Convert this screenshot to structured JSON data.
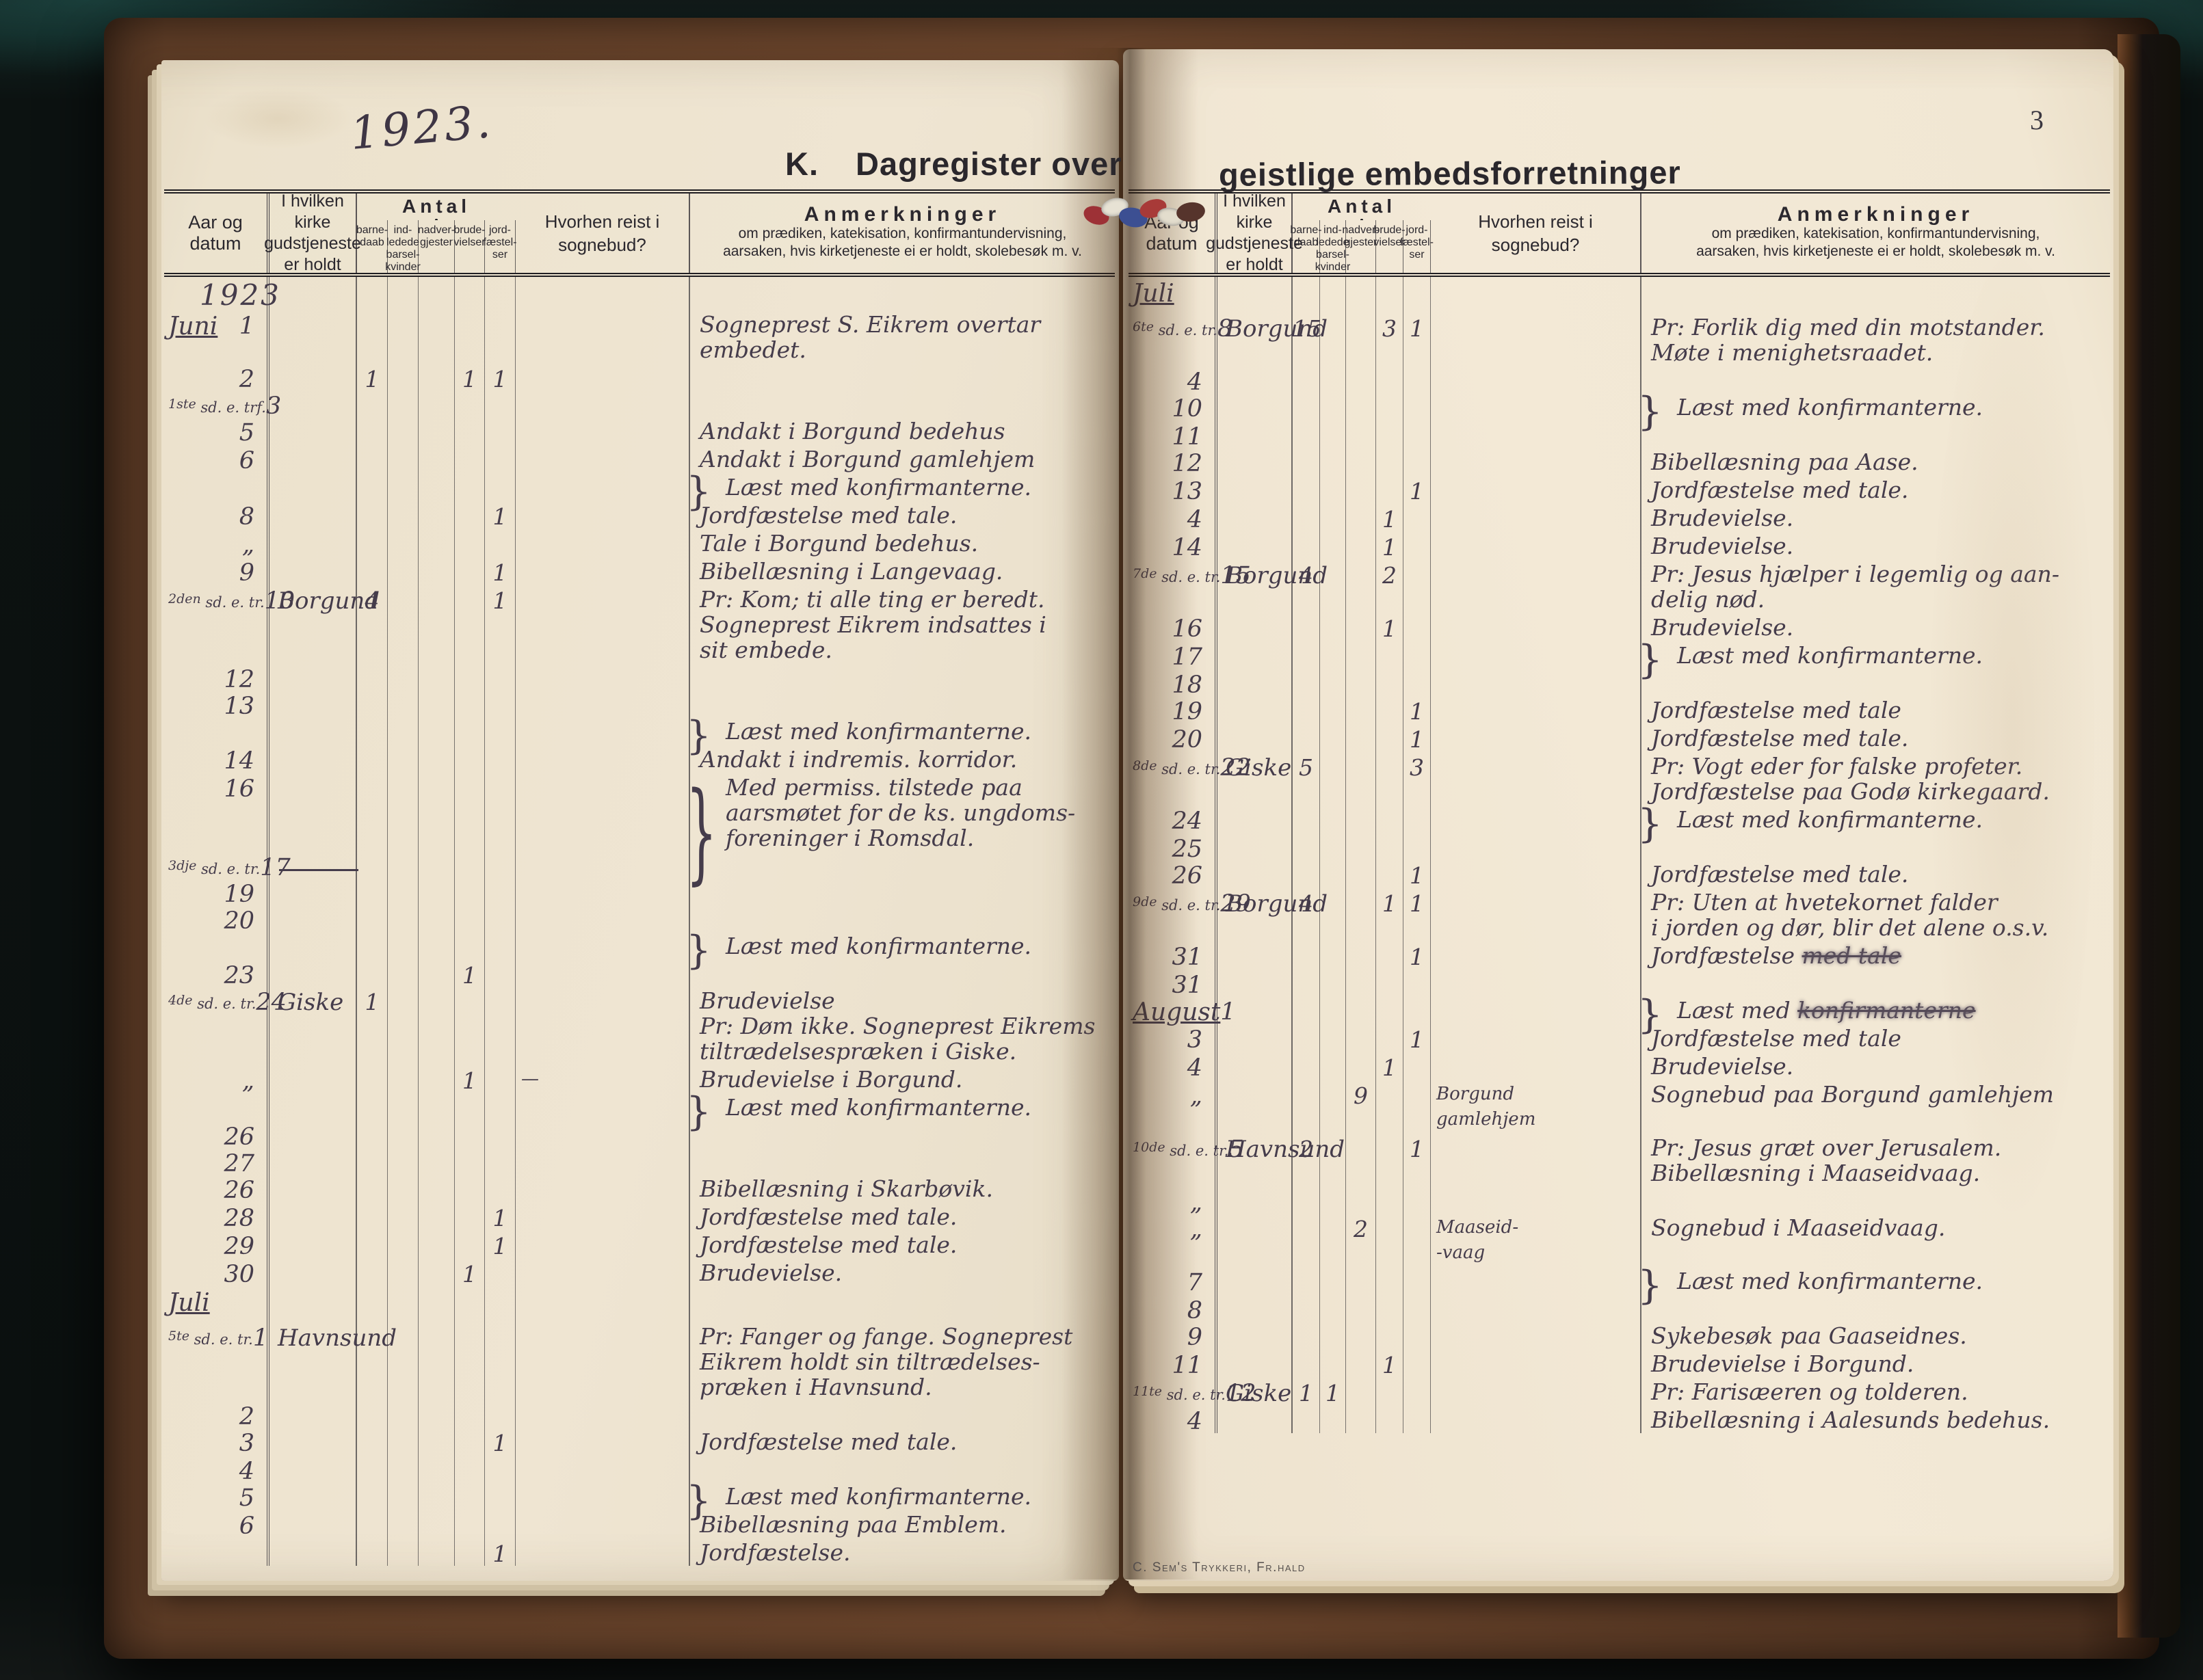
{
  "document": {
    "title_k": "K.",
    "title_left": "Dagregister over",
    "title_right": "geistlige embedsforretninger",
    "page_number": "3",
    "year_script": "1923.",
    "printer_mark": "C. Sem's Trykkeri, Fr.hald"
  },
  "table_header": {
    "datum": "Aar og datum",
    "church": [
      "I hvilken kirke",
      "gudstjeneste",
      "er holdt"
    ],
    "antal_title": "Antal",
    "antal_cols": [
      [
        "barne-",
        "daab"
      ],
      [
        "ind-",
        "ledede",
        "barsel-",
        "kvinder"
      ],
      [
        "nadver-",
        "gjester"
      ],
      [
        "brude-",
        "vielser"
      ],
      [
        "jord-",
        "fæstel-",
        "ser"
      ]
    ],
    "hvorhen": [
      "Hvorhen reist i",
      "sognebud?"
    ],
    "anm_title": "Anmerkninger",
    "anm_sub": [
      "om prædiken, katekisation, konfirmantundervisning,",
      "aarsaken, hvis kirketjeneste ei er holdt, skolebesøk m. v."
    ]
  },
  "pages": [
    {
      "rows": [
        {
          "year": "1923"
        },
        {
          "month": "Juni",
          "day": "1",
          "anm": [
            "Sogneprest S. Eikrem overtar",
            "embedet."
          ]
        },
        {
          "day": "2",
          "n": {
            "bd": "1",
            "bv": "1",
            "jf": "1"
          }
        },
        {
          "pre": "1ste",
          "pre2": "sd. e. trf.",
          "day": "3"
        },
        {
          "day": "5",
          "anm": [
            "Andakt i Borgund bedehus"
          ]
        },
        {
          "day": "6",
          "anm": [
            "Andakt i Borgund gamlehjem"
          ]
        },
        {
          "brace": true,
          "anm": [
            "Læst med konfirmanterne."
          ]
        },
        {
          "day": "8",
          "n": {
            "jf": "1"
          },
          "anm": [
            "Jordfæstelse med tale."
          ]
        },
        {
          "day": "„",
          "anm": [
            "Tale i Borgund bedehus."
          ]
        },
        {
          "day": "9",
          "n": {
            "jf": "1"
          },
          "anm": [
            "Bibellæsning i Langevaag."
          ]
        },
        {
          "pre": "2den",
          "pre2": "sd. e. tr.",
          "day": "10",
          "church": "Borgund",
          "n": {
            "bd": "4",
            "jf": "1"
          },
          "anm": [
            "Pr: Kom; ti alle ting er beredt.",
            "Sogneprest Eikrem indsattes i",
            "sit embede."
          ]
        },
        {
          "day": "12"
        },
        {
          "day": "13"
        },
        {
          "brace": true,
          "anm": [
            "Læst med konfirmanterne."
          ]
        },
        {
          "day": "14",
          "anm": [
            "Andakt i indremis. korridor."
          ]
        },
        {
          "day": "16",
          "brace": true,
          "anm": [
            "Med permiss. tilstede paa",
            "aarsmøtet for de ks. ungdoms-",
            "foreninger i Romsdal."
          ]
        },
        {
          "pre": "3dje",
          "pre2": "sd. e. tr.",
          "day": "17",
          "dash": true
        },
        {
          "day": "19"
        },
        {
          "day": "20"
        },
        {
          "brace": true,
          "anm": [
            "Læst med konfirmanterne."
          ]
        },
        {
          "day": "23",
          "n": {
            "bv": "1"
          }
        },
        {
          "pre": "4de",
          "pre2": "sd. e. tr.",
          "day": "24",
          "church": "Giske",
          "n": {
            "bd": "1"
          },
          "anm": [
            "Brudevielse",
            "Pr: Døm ikke. Sogneprest Eikrems",
            "tiltrædelsespræken i Giske."
          ]
        },
        {
          "day": "„",
          "n": {
            "bv": "1"
          },
          "hvorhen": [
            "—"
          ],
          "anm": [
            "Brudevielse i Borgund."
          ]
        },
        {
          "brace": true,
          "anm": [
            "Læst med konfirmanterne."
          ]
        },
        {
          "day": "26"
        },
        {
          "day": "27"
        },
        {
          "day": "26",
          "anm": [
            "Bibellæsning i Skarbøvik."
          ]
        },
        {
          "day": "28",
          "n": {
            "jf": "1"
          },
          "anm": [
            "Jordfæstelse med tale."
          ]
        },
        {
          "day": "29",
          "n": {
            "jf": "1"
          },
          "anm": [
            "Jordfæstelse med tale."
          ]
        },
        {
          "day": "30",
          "n": {
            "bv": "1"
          },
          "anm": [
            "Brudevielse."
          ]
        },
        {
          "month": "Juli"
        },
        {
          "pre": "5te",
          "pre2": "sd. e. tr.",
          "day": "1",
          "church": "Havnsund",
          "anm": [
            "Pr: Fanger og fange. Sogneprest",
            "Eikrem holdt sin tiltrædelses-",
            "præken i Havnsund."
          ]
        },
        {
          "day": "2"
        },
        {
          "day": "3",
          "n": {
            "jf": "1"
          },
          "anm": [
            "Jordfæstelse med tale."
          ]
        },
        {
          "day": "4"
        },
        {
          "day": "5",
          "brace": true,
          "anm": [
            "Læst med konfirmanterne."
          ]
        },
        {
          "day": "6",
          "anm": [
            "Bibellæsning paa Emblem."
          ]
        },
        {
          "n": {
            "jf": "1"
          },
          "anm": [
            "Jordfæstelse."
          ]
        }
      ]
    },
    {
      "rows": [
        {
          "month": "Juli"
        },
        {
          "pre": "6te",
          "pre2": "sd. e. tr.",
          "day": "8",
          "church": "Borgund",
          "n": {
            "bd": "15",
            "bv": "3",
            "jf": "1"
          },
          "anm": [
            "Pr: Forlik dig med din motstander.",
            "Møte i menighetsraadet."
          ]
        },
        {
          "day": "4"
        },
        {
          "day": "10",
          "brace": true,
          "anm": [
            "Læst med konfirmanterne."
          ]
        },
        {
          "day": "11"
        },
        {
          "day": "12",
          "anm": [
            "Bibellæsning paa Aase."
          ]
        },
        {
          "day": "13",
          "n": {
            "jf": "1"
          },
          "anm": [
            "Jordfæstelse med tale."
          ]
        },
        {
          "day": "4",
          "n": {
            "bv": "1"
          },
          "anm": [
            "Brudevielse."
          ]
        },
        {
          "day": "14",
          "n": {
            "bv": "1"
          },
          "anm": [
            "Brudevielse."
          ]
        },
        {
          "pre": "7de",
          "pre2": "sd. e. tr.",
          "day": "15",
          "church": "Borgund",
          "n": {
            "bd": "4",
            "bv": "2"
          },
          "anm": [
            "Pr: Jesus hjælper i legemlig og aan-",
            "delig nød."
          ]
        },
        {
          "day": "16",
          "n": {
            "bv": "1"
          },
          "anm": [
            "Brudevielse."
          ]
        },
        {
          "day": "17",
          "brace": true,
          "anm": [
            "Læst med konfirmanterne."
          ]
        },
        {
          "day": "18"
        },
        {
          "day": "19",
          "n": {
            "jf": "1"
          },
          "anm": [
            "Jordfæstelse med tale"
          ]
        },
        {
          "day": "20",
          "n": {
            "jf": "1"
          },
          "anm": [
            "Jordfæstelse med tale."
          ]
        },
        {
          "pre": "8de",
          "pre2": "sd. e. tr.",
          "day": "22",
          "church": "Giske",
          "n": {
            "bd": "5",
            "jf": "3"
          },
          "anm": [
            "Pr: Vogt eder for falske profeter.",
            "Jordfæstelse paa Godø kirkegaard."
          ]
        },
        {
          "day": "24",
          "brace": true,
          "anm": [
            "Læst med konfirmanterne."
          ]
        },
        {
          "day": "25"
        },
        {
          "day": "26",
          "n": {
            "jf": "1"
          },
          "anm": [
            "Jordfæstelse med tale."
          ]
        },
        {
          "pre": "9de",
          "pre2": "sd. e. tr.",
          "day": "29",
          "church": "Borgund",
          "n": {
            "bd": "4",
            "bv": "1",
            "jf": "1"
          },
          "anm": [
            "Pr: Uten at hvetekornet falder",
            "i jorden og dør, blir det alene o.s.v."
          ]
        },
        {
          "day": "31",
          "n": {
            "jf": "1"
          },
          "anm": [
            {
              "text": "Jordfæstelse ",
              "struck": "med tale"
            }
          ]
        },
        {
          "day": "31"
        },
        {
          "month": "August",
          "day": "1",
          "brace": true,
          "anm": [
            {
              "text": "Læst med ",
              "struck": "konfirmanterne"
            }
          ]
        },
        {
          "day": "3",
          "n": {
            "jf": "1"
          },
          "anm": [
            "Jordfæstelse med tale"
          ]
        },
        {
          "day": "4",
          "n": {
            "bv": "1"
          },
          "anm": [
            "Brudevielse."
          ]
        },
        {
          "day": "„",
          "n": {
            "ng": "9"
          },
          "hvorhen": [
            "Borgund",
            "gamlehjem"
          ],
          "anm": [
            "Sognebud paa Borgund gamlehjem"
          ]
        },
        {
          "pre": "10de",
          "pre2": "sd. e. tr.",
          "day": "5",
          "church": "Havnsund",
          "n": {
            "bd": "2",
            "jf": "1"
          },
          "anm": [
            "Pr: Jesus græt over Jerusalem.",
            "Bibellæsning i Maaseidvaag."
          ]
        },
        {
          "day": "„"
        },
        {
          "day": "„",
          "n": {
            "ng": "2"
          },
          "hvorhen": [
            "Maaseid-",
            "-vaag"
          ],
          "anm": [
            "Sognebud i Maaseidvaag."
          ]
        },
        {
          "day": "7",
          "brace": true,
          "anm": [
            "Læst med konfirmanterne."
          ]
        },
        {
          "day": "8"
        },
        {
          "day": "9",
          "anm": [
            "Sykebesøk paa Gaaseidnes."
          ]
        },
        {
          "day": "11",
          "n": {
            "bv": "1"
          },
          "anm": [
            "Brudevielse i Borgund."
          ]
        },
        {
          "pre": "11te",
          "pre2": "sd. e. tr.",
          "day": "12",
          "church": "Giske",
          "n": {
            "bd": "1",
            "ibk": "1"
          },
          "anm": [
            "Pr: Farisæeren og tolderen."
          ]
        },
        {
          "day": "4",
          "anm": [
            "Bibellæsning i Aalesunds bedehus."
          ]
        }
      ]
    }
  ]
}
